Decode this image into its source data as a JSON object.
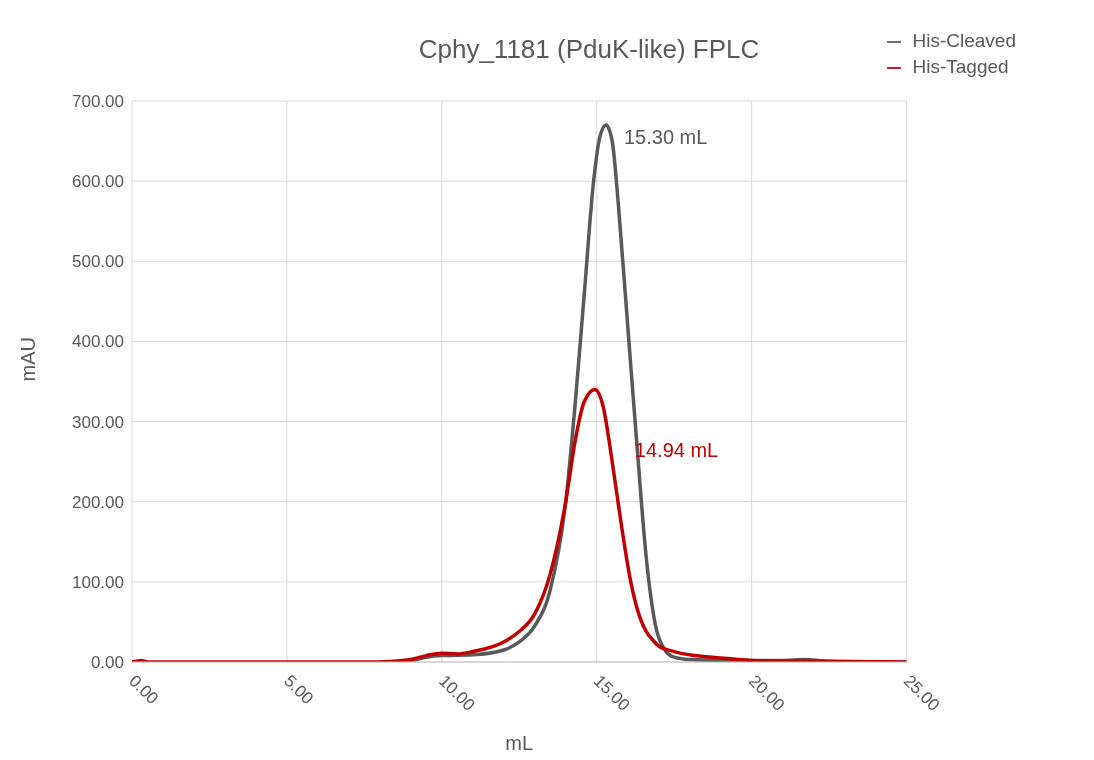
{
  "chart_data": {
    "type": "line",
    "title": "Cphy_1181 (PduK-like) FPLC",
    "xlabel": "mL",
    "ylabel": "mAU",
    "series": [
      {
        "name": "His-Cleaved",
        "color": "#595959",
        "x": [
          8,
          9,
          9.5,
          10,
          11,
          12,
          12.5,
          13,
          13.5,
          14,
          14.3,
          14.6,
          14.9,
          15.1,
          15.3,
          15.5,
          15.7,
          16,
          16.3,
          16.6,
          16.9,
          17.2,
          17.5,
          18,
          19,
          20,
          21,
          21.7,
          22.5,
          25
        ],
        "values": [
          0,
          2,
          6,
          8,
          9,
          15,
          25,
          45,
          90,
          200,
          320,
          460,
          600,
          655,
          670,
          650,
          570,
          420,
          270,
          130,
          45,
          15,
          6,
          3,
          2,
          2,
          2,
          3,
          1,
          0
        ]
      },
      {
        "name": "His-Tagged",
        "color": "#c00000",
        "x": [
          0,
          0.3,
          0.5,
          8,
          9,
          9.5,
          10,
          10.5,
          11,
          12,
          12.5,
          13,
          13.5,
          14,
          14.3,
          14.6,
          14.94,
          15.2,
          15.5,
          15.8,
          16.1,
          16.4,
          16.6,
          16.8,
          17,
          17.5,
          18,
          19,
          20,
          21,
          22,
          25
        ],
        "values": [
          0,
          2,
          0,
          0,
          3,
          8,
          11,
          10,
          13,
          25,
          38,
          60,
          110,
          200,
          275,
          325,
          340,
          320,
          250,
          170,
          100,
          55,
          38,
          28,
          20,
          13,
          9,
          5,
          2,
          1,
          1,
          0
        ]
      }
    ],
    "annotations": [
      "15.30 mL",
      "14.94 mL"
    ],
    "xlim": [
      0,
      25
    ],
    "xticks": [
      {
        "value": 0,
        "label": "0.00"
      },
      {
        "value": 5,
        "label": "5.00"
      },
      {
        "value": 10,
        "label": "10.00"
      },
      {
        "value": 15,
        "label": "15.00"
      },
      {
        "value": 20,
        "label": "20.00"
      },
      {
        "value": 25,
        "label": "25.00"
      }
    ],
    "ylim": [
      0,
      700
    ],
    "yticks": [
      {
        "value": 0,
        "label": "0.00"
      },
      {
        "value": 100,
        "label": "100.00"
      },
      {
        "value": 200,
        "label": "200.00"
      },
      {
        "value": 300,
        "label": "300.00"
      },
      {
        "value": 400,
        "label": "400.00"
      },
      {
        "value": 500,
        "label": "500.00"
      },
      {
        "value": 600,
        "label": "600.00"
      },
      {
        "value": 700,
        "label": "700.00"
      }
    ],
    "grid": true,
    "legend": "top right",
    "marker": "none",
    "line_style": "solid"
  }
}
